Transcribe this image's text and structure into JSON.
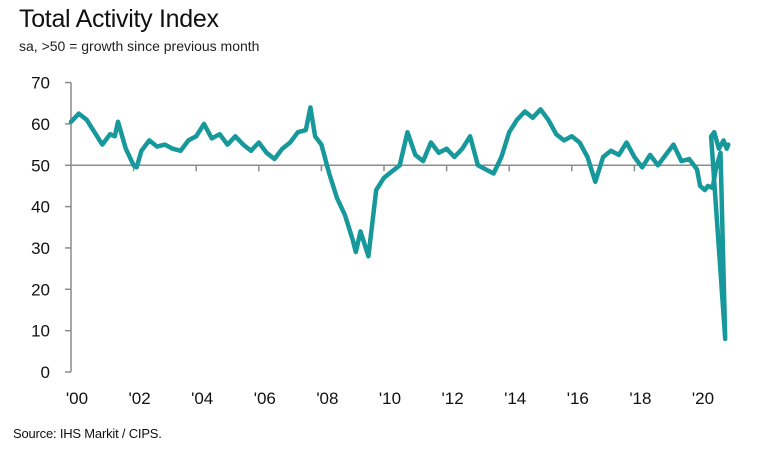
{
  "header": {
    "title": "Total Activity Index",
    "subtitle": "sa, >50 = growth since previous month"
  },
  "footer": {
    "source": "Source: IHS Markit / CIPS."
  },
  "colors": {
    "line": "#17989a",
    "axis": "#8c8c8c"
  },
  "chart_data": {
    "type": "line",
    "title": "Total Activity Index",
    "subtitle": "sa, >50 = growth since previous month",
    "xlabel": "",
    "ylabel": "",
    "ylim": [
      0,
      70
    ],
    "xlim": [
      2000,
      2021
    ],
    "yticks": [
      0,
      10,
      20,
      30,
      40,
      50,
      60,
      70
    ],
    "ytick_labels": [
      "0",
      "10",
      "20",
      "30",
      "40",
      "50",
      "60",
      "70"
    ],
    "xticks": [
      2000,
      2002,
      2004,
      2006,
      2008,
      2010,
      2012,
      2014,
      2016,
      2018,
      2020
    ],
    "xtick_labels": [
      "'00",
      "'02",
      "'04",
      "'06",
      "'08",
      "'10",
      "'12",
      "'14",
      "'16",
      "'18",
      "'20"
    ],
    "reference_line": 50,
    "grid": false,
    "legend": "none",
    "series": [
      {
        "name": "Total Activity Index",
        "x": [
          2000.0,
          2000.25,
          2000.5,
          2000.75,
          2001.0,
          2001.25,
          2001.4,
          2001.5,
          2001.75,
          2002.0,
          2002.1,
          2002.25,
          2002.5,
          2002.75,
          2003.0,
          2003.25,
          2003.5,
          2003.75,
          2004.0,
          2004.25,
          2004.5,
          2004.75,
          2005.0,
          2005.25,
          2005.5,
          2005.75,
          2006.0,
          2006.25,
          2006.5,
          2006.75,
          2007.0,
          2007.25,
          2007.5,
          2007.65,
          2007.8,
          2008.0,
          2008.25,
          2008.5,
          2008.75,
          2009.0,
          2009.1,
          2009.25,
          2009.5,
          2009.75,
          2010.0,
          2010.25,
          2010.5,
          2010.75,
          2011.0,
          2011.25,
          2011.5,
          2011.75,
          2012.0,
          2012.25,
          2012.5,
          2012.75,
          2013.0,
          2013.25,
          2013.5,
          2013.75,
          2014.0,
          2014.25,
          2014.5,
          2014.75,
          2015.0,
          2015.25,
          2015.5,
          2015.75,
          2016.0,
          2016.25,
          2016.5,
          2016.75,
          2017.0,
          2017.25,
          2017.5,
          2017.75,
          2018.0,
          2018.25,
          2018.5,
          2018.75,
          2019.0,
          2019.25,
          2019.5,
          2019.75,
          2020.0,
          2020.1,
          2020.25,
          2020.35,
          2020.5,
          2020.6,
          2020.75,
          2020.9
        ],
        "values": [
          60.5,
          62.5,
          61,
          58,
          55,
          57.5,
          57,
          60.5,
          54,
          50,
          49.5,
          53.5,
          56,
          54.5,
          55,
          54,
          53.5,
          56,
          57,
          60,
          56.5,
          57.5,
          55,
          57,
          55,
          53.5,
          55.5,
          53,
          51.5,
          54,
          55.5,
          58,
          58.5,
          64,
          57,
          55,
          48,
          42,
          38,
          32,
          29,
          34,
          28,
          44,
          47,
          48.5,
          50,
          58,
          52.5,
          51,
          55.5,
          53,
          54,
          52,
          54,
          57,
          50,
          49,
          48,
          52,
          58,
          61,
          63,
          61.5,
          63.5,
          61,
          57.5,
          56,
          57,
          55.5,
          52,
          46,
          52,
          53.5,
          52.5,
          55.5,
          52,
          49.5,
          52.5,
          50,
          52.5,
          55,
          51,
          51.5,
          49,
          45,
          44,
          45,
          44.5,
          49,
          53,
          8
        ]
      }
    ]
  }
}
